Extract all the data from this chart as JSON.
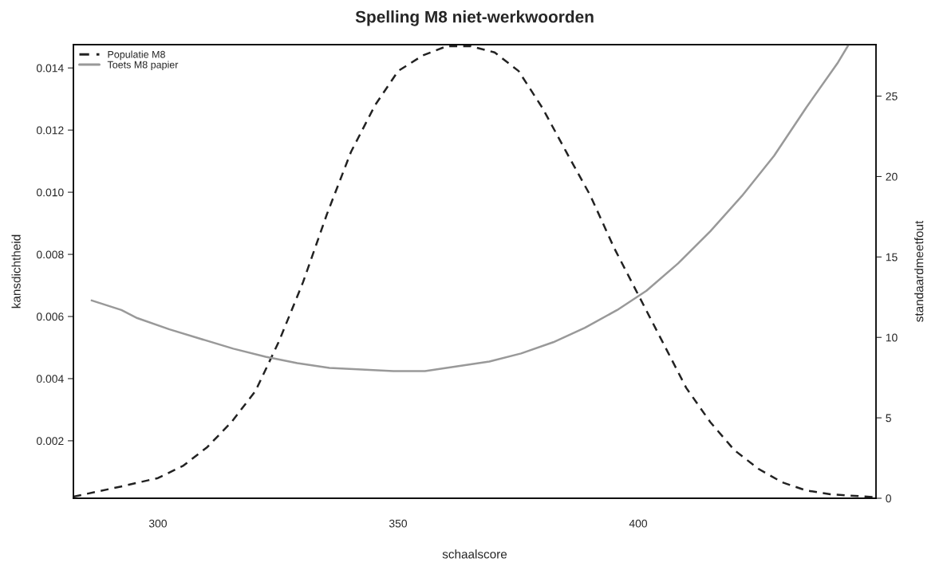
{
  "chart_data": {
    "type": "line",
    "title": "Spelling M8 niet-werkwoorden",
    "xlabel": "schaalscore",
    "ylabel": "kansdichtheid",
    "y2label": "standaardmeetfout",
    "xlim": [
      282.4,
      449.5
    ],
    "xticks": [
      300,
      350,
      400
    ],
    "ylim": [
      0.00015,
      0.01475
    ],
    "yticks": [
      {
        "value": 0.002,
        "label": "0.002"
      },
      {
        "value": 0.004,
        "label": "0.004"
      },
      {
        "value": 0.006,
        "label": "0.006"
      },
      {
        "value": 0.008,
        "label": "0.008"
      },
      {
        "value": 0.01,
        "label": "0.010"
      },
      {
        "value": 0.012,
        "label": "0.012"
      },
      {
        "value": 0.014,
        "label": "0.014"
      }
    ],
    "y2lim": [
      0,
      28.2
    ],
    "y2ticks": [
      0,
      5,
      10,
      15,
      20,
      25
    ],
    "grid": false,
    "legend": "top left",
    "marker": "none",
    "series": [
      {
        "name": "Populatie M8",
        "color": "#222222",
        "line_style": "dashed",
        "axis": "y",
        "x": [
          282.4,
          292.4,
          300,
          305.3,
          310.3,
          315.3,
          320.3,
          325.2,
          330.2,
          335.2,
          340.2,
          345.2,
          350,
          355.1,
          360.1,
          365.1,
          370.1,
          375.1,
          380.1,
          385,
          390,
          395,
          400,
          405,
          410,
          415,
          420,
          425,
          430,
          435,
          440,
          449.5
        ],
        "values": [
          0.0002,
          0.00053,
          0.0008,
          0.0012,
          0.0018,
          0.0026,
          0.0036,
          0.0052,
          0.0071,
          0.0093,
          0.0113,
          0.0128,
          0.0139,
          0.0144,
          0.0147,
          0.0147,
          0.0145,
          0.0139,
          0.0127,
          0.0113,
          0.0099,
          0.0082,
          0.0067,
          0.0052,
          0.0037,
          0.0026,
          0.0017,
          0.0011,
          0.00066,
          0.0004,
          0.00028,
          0.00018
        ]
      },
      {
        "name": "Toets M8 papier",
        "color": "#999999",
        "line_style": "solid",
        "axis": "y2",
        "x": [
          286.2,
          292.4,
          295.7,
          302.4,
          309,
          315.7,
          322.4,
          329,
          335.7,
          342.4,
          349,
          355.6,
          362.3,
          369,
          375.6,
          382.3,
          388.9,
          395.6,
          401.7,
          408.3,
          415,
          421.6,
          428.3,
          435,
          441.6,
          443.8
        ],
        "values": [
          12.3,
          11.7,
          11.2,
          10.5,
          9.9,
          9.3,
          8.8,
          8.4,
          8.1,
          8.0,
          7.9,
          7.9,
          8.2,
          8.5,
          9.0,
          9.7,
          10.6,
          11.7,
          12.9,
          14.6,
          16.6,
          18.8,
          21.3,
          24.3,
          27.1,
          28.2
        ]
      }
    ]
  }
}
